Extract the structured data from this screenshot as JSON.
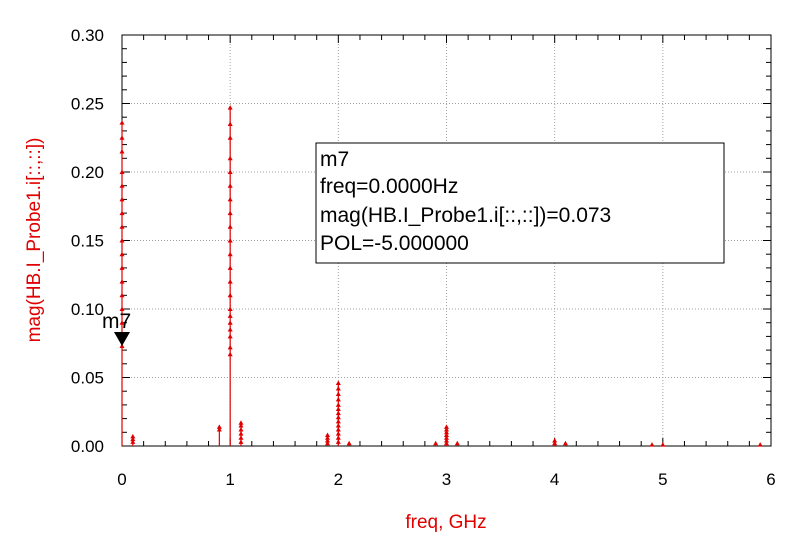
{
  "colors": {
    "trace": "#e00000",
    "axis": "#000000",
    "grid": "#a0a0a0"
  },
  "chart_data": {
    "type": "bar",
    "xlabel": "freq, GHz",
    "ylabel": "mag(HB.I_Probe1.i[::,::])",
    "xlim": [
      0,
      6
    ],
    "ylim": [
      0,
      0.3
    ],
    "x_ticks": [
      "0",
      "1",
      "2",
      "3",
      "4",
      "5",
      "6"
    ],
    "y_ticks": [
      "0.00",
      "0.05",
      "0.10",
      "0.15",
      "0.20",
      "0.25",
      "0.30"
    ],
    "grid": true,
    "series": [
      {
        "stems": [
          {
            "freq": 0.0,
            "points": [
              0.073,
              0.08,
              0.09,
              0.1,
              0.11,
              0.12,
              0.13,
              0.14,
              0.15,
              0.16,
              0.17,
              0.18,
              0.19,
              0.2,
              0.215,
              0.225,
              0.236
            ]
          },
          {
            "freq": 0.1,
            "points": [
              0.003,
              0.005,
              0.007
            ]
          },
          {
            "freq": 0.9,
            "points": [
              0.012,
              0.014
            ]
          },
          {
            "freq": 1.0,
            "points": [
              0.067,
              0.072,
              0.08,
              0.085,
              0.09,
              0.095,
              0.1,
              0.11,
              0.12,
              0.13,
              0.14,
              0.15,
              0.16,
              0.17,
              0.18,
              0.19,
              0.2,
              0.21,
              0.225,
              0.235,
              0.247
            ]
          },
          {
            "freq": 1.1,
            "points": [
              0.003,
              0.006,
              0.009,
              0.012,
              0.015,
              0.017
            ]
          },
          {
            "freq": 1.9,
            "points": [
              0.002,
              0.004,
              0.006,
              0.008
            ]
          },
          {
            "freq": 2.0,
            "points": [
              0.003,
              0.006,
              0.009,
              0.012,
              0.015,
              0.018,
              0.021,
              0.024,
              0.027,
              0.03,
              0.034,
              0.038,
              0.042,
              0.046
            ]
          },
          {
            "freq": 2.1,
            "points": [
              0.002
            ]
          },
          {
            "freq": 2.9,
            "points": [
              0.002
            ]
          },
          {
            "freq": 3.0,
            "points": [
              0.002,
              0.004,
              0.006,
              0.008,
              0.01,
              0.012,
              0.014
            ]
          },
          {
            "freq": 3.1,
            "points": [
              0.002
            ]
          },
          {
            "freq": 4.0,
            "points": [
              0.002,
              0.004
            ]
          },
          {
            "freq": 4.1,
            "points": [
              0.002
            ]
          },
          {
            "freq": 4.9,
            "points": [
              0.001
            ]
          },
          {
            "freq": 5.0,
            "points": [
              0.001
            ]
          },
          {
            "freq": 5.9,
            "points": [
              0.001
            ]
          }
        ]
      }
    ],
    "marker": {
      "name": "m7",
      "freq": 0.0,
      "value": 0.073,
      "lines": [
        "m7",
        "freq=0.0000Hz",
        "mag(HB.I_Probe1.i[::,::])=0.073",
        "POL=-5.000000"
      ]
    }
  }
}
